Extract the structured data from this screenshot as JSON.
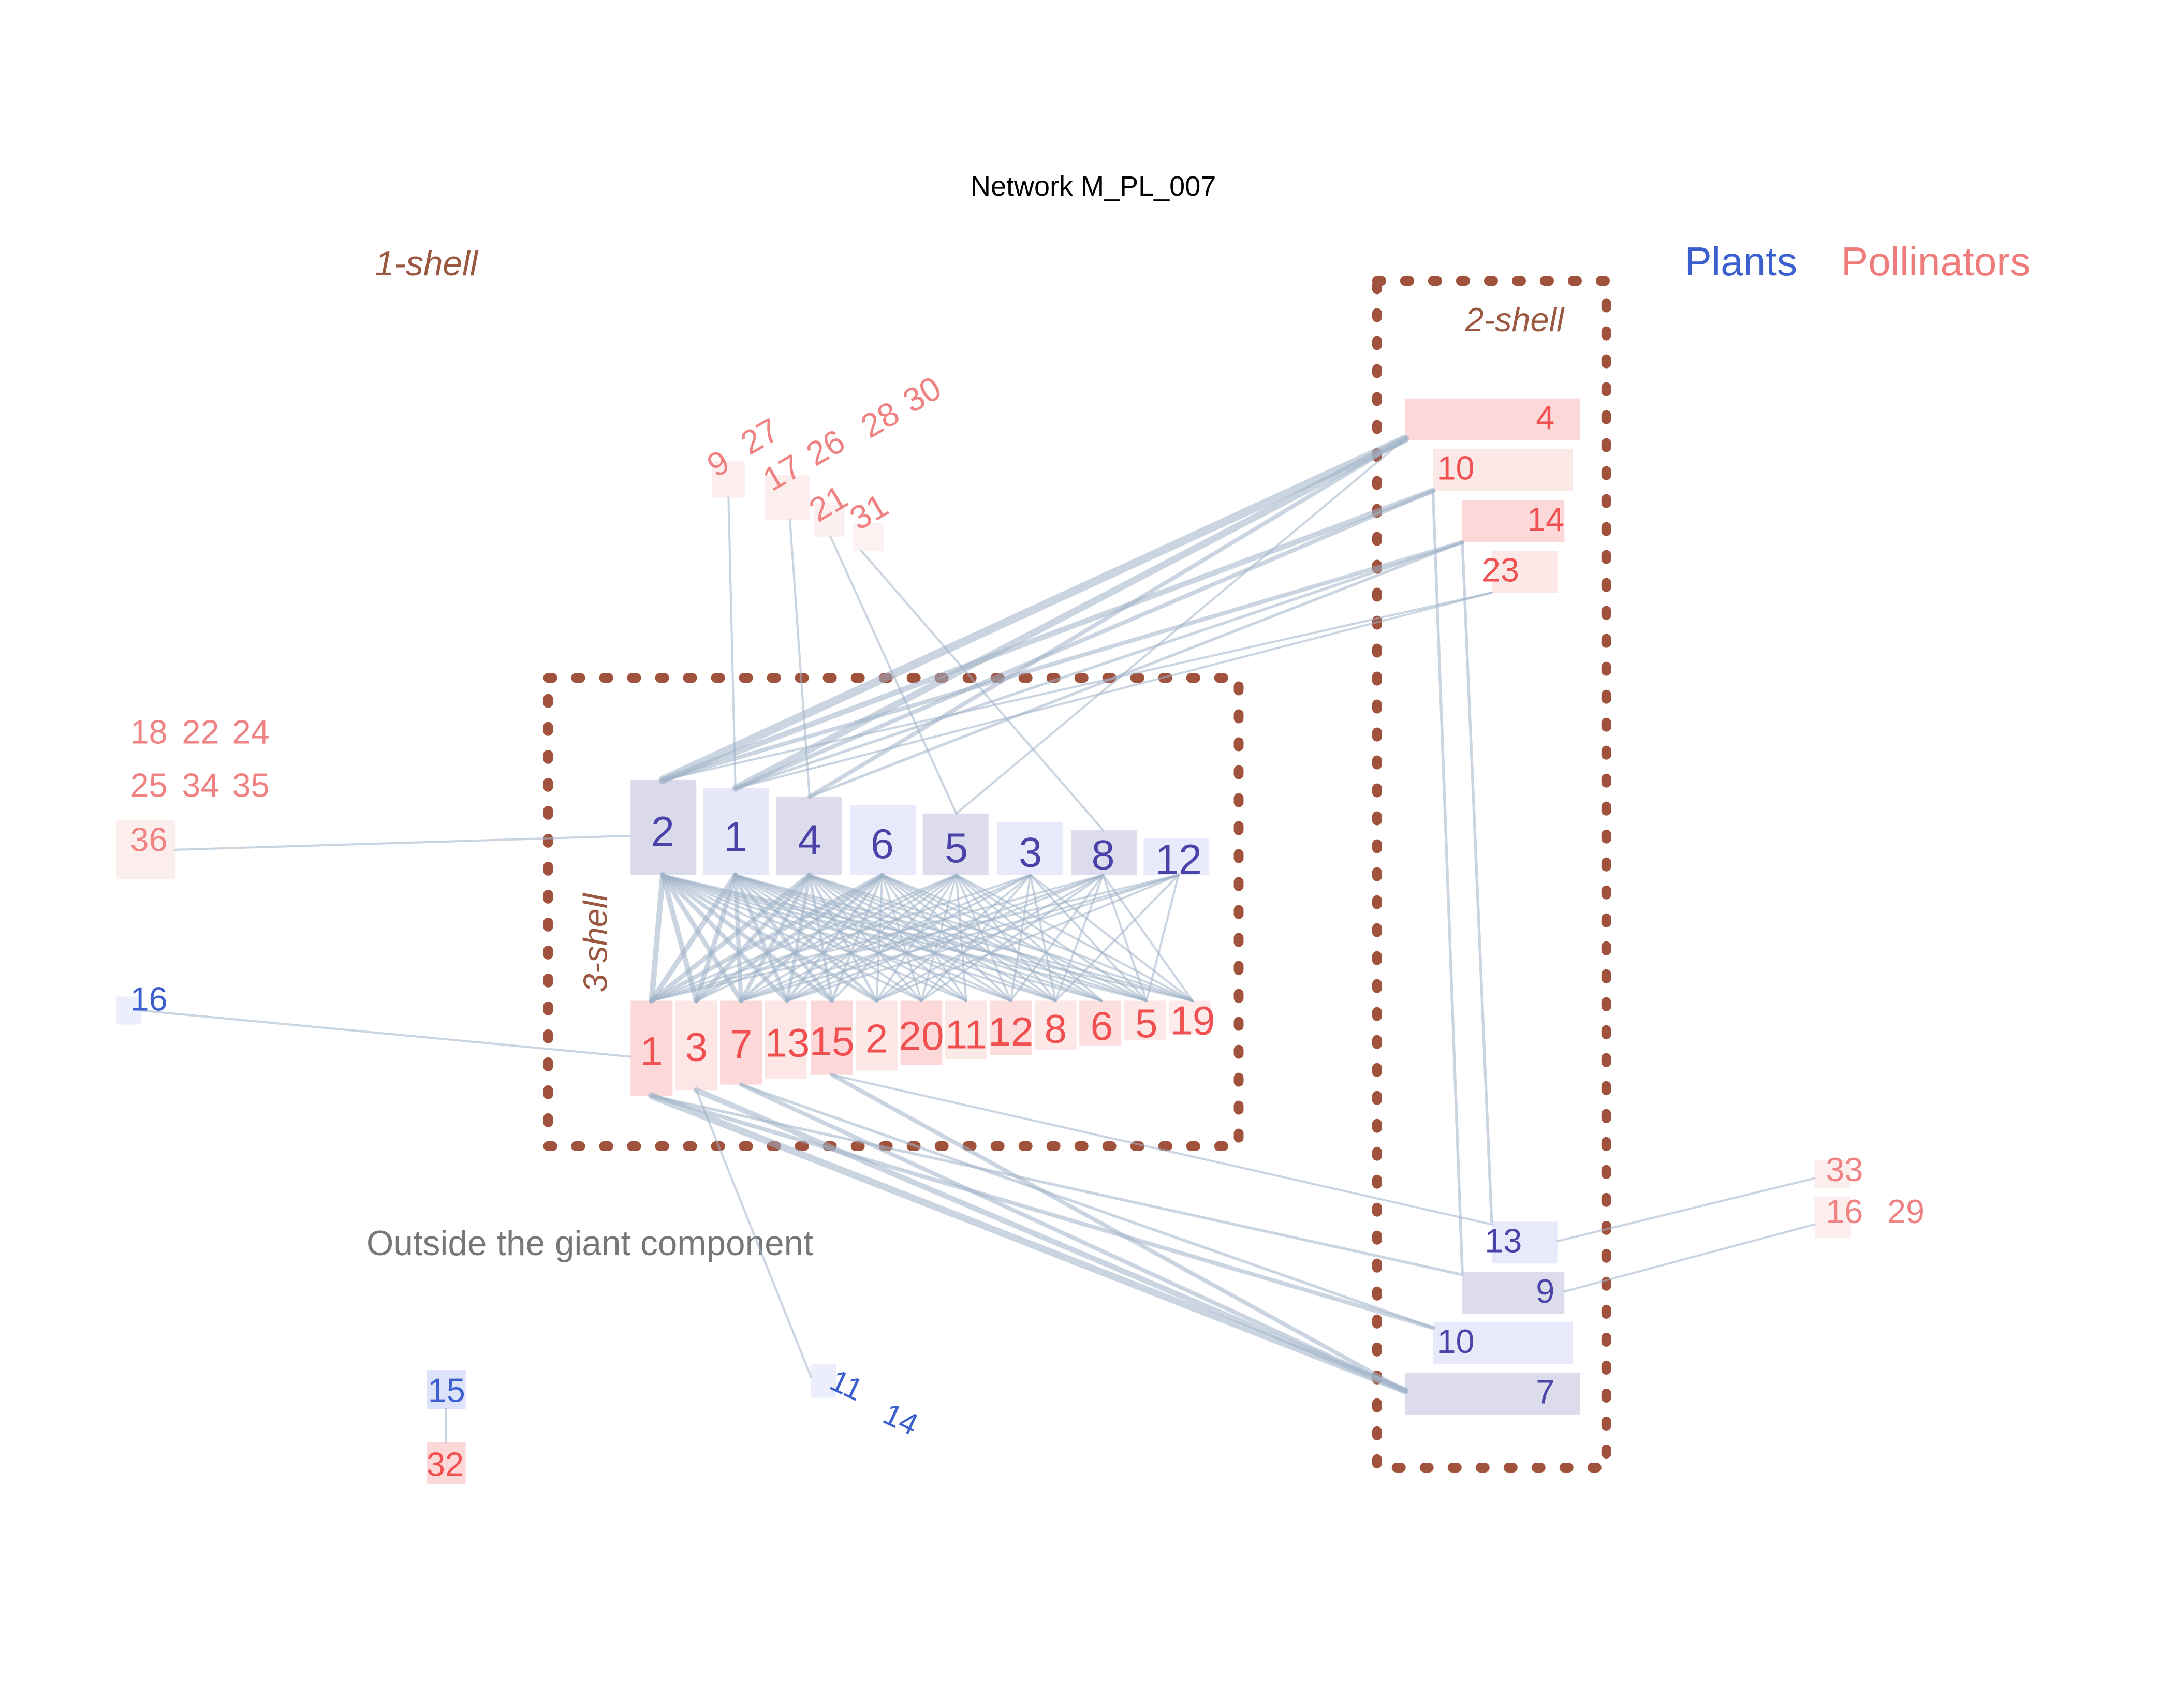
{
  "title": "Network M_PL_007",
  "legend": {
    "plants_label": "Plants",
    "pollinators_label": "Pollinators"
  },
  "colors": {
    "plant_text": "#3b5fcf",
    "plant_text_core": "#4a44a8",
    "pollinator_text": "#f05050",
    "pollinator_text_light": "#ef8383",
    "shell_label": "#9a5840",
    "edge": "#9fb3c8",
    "outside_text": "#777777",
    "box_border": "#a0523d"
  },
  "shells": {
    "shell1_label": "1-shell",
    "shell2_label": "2-shell",
    "shell3_label": "3-shell"
  },
  "outside_label": "Outside the giant component",
  "nodes": {
    "core_plants": [
      "2",
      "1",
      "4",
      "6",
      "5",
      "3",
      "8",
      "12"
    ],
    "core_pollinators": [
      "1",
      "3",
      "7",
      "13",
      "15",
      "2",
      "20",
      "11",
      "12",
      "8",
      "6",
      "5",
      "19"
    ],
    "shell2_pollinators": [
      "4",
      "10",
      "14",
      "23"
    ],
    "shell2_plants": [
      "13",
      "9",
      "10",
      "7"
    ],
    "shell1_top_pollinators": [
      "9",
      "27",
      "17",
      "26",
      "28",
      "30",
      "21",
      "31"
    ],
    "shell1_left_pollinators": [
      "18",
      "22",
      "24",
      "25",
      "34",
      "35",
      "36"
    ],
    "shell1_left_plants": [
      "16"
    ],
    "shell1_right_pollinators": [
      "33",
      "16",
      "29"
    ],
    "shell1_bottom_plants": [
      "11",
      "14"
    ],
    "outside_plants": [
      "15"
    ],
    "outside_pollinators": [
      "32"
    ]
  }
}
